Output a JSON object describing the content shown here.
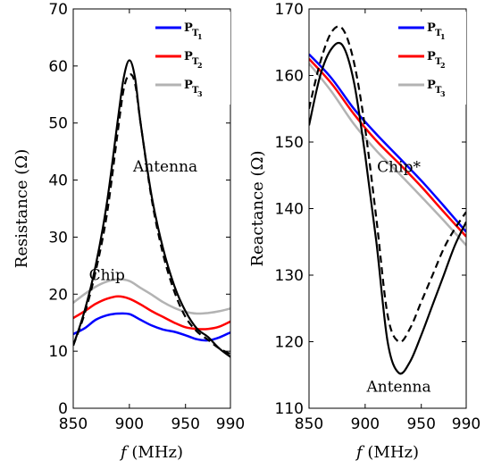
{
  "chart_data": [
    {
      "type": "line",
      "xlabel_var": "f",
      "xlabel_unit": "(MHz)",
      "ylabel": "Resistance (Ω)",
      "xlim": [
        850,
        990
      ],
      "ylim": [
        0,
        70
      ],
      "xticks": [
        850,
        900,
        950,
        990
      ],
      "yticks": [
        0,
        10,
        20,
        30,
        40,
        50,
        60,
        70
      ],
      "annotations": [
        {
          "text": "Antenna",
          "x": 932,
          "y": 41.5
        },
        {
          "text": "Chip",
          "x": 880,
          "y": 22.5
        }
      ],
      "legend": {
        "placement": "top-right",
        "entries": [
          {
            "base": "P",
            "sub": "T",
            "subsub": "1",
            "color": "#0000ff"
          },
          {
            "base": "P",
            "sub": "T",
            "subsub": "2",
            "color": "#ff0000"
          },
          {
            "base": "P",
            "sub": "T",
            "subsub": "3",
            "color": "#b3b3b3"
          }
        ]
      },
      "series": [
        {
          "color": "#0000ff",
          "width": 2.5,
          "dash": "",
          "x": [
            850,
            860,
            870,
            880,
            890,
            900,
            910,
            920,
            930,
            940,
            950,
            960,
            970,
            980,
            990
          ],
          "y": [
            13,
            14,
            15.5,
            16.3,
            16.6,
            16.5,
            15.5,
            14.5,
            13.8,
            13.4,
            12.8,
            12.1,
            11.9,
            12.4,
            13.3
          ]
        },
        {
          "color": "#ff0000",
          "width": 2.5,
          "dash": "",
          "x": [
            850,
            860,
            870,
            880,
            890,
            900,
            910,
            920,
            930,
            940,
            950,
            960,
            970,
            980,
            990
          ],
          "y": [
            15.8,
            17,
            18.3,
            19.2,
            19.6,
            19.2,
            18.2,
            17,
            16,
            15,
            14.2,
            13.9,
            13.9,
            14.3,
            15.2
          ]
        },
        {
          "color": "#b3b3b3",
          "width": 2.5,
          "dash": "",
          "x": [
            850,
            860,
            870,
            880,
            890,
            900,
            910,
            920,
            930,
            940,
            950,
            960,
            970,
            980,
            990
          ],
          "y": [
            18.5,
            20,
            21.3,
            22.2,
            22.6,
            22.3,
            21.1,
            19.9,
            18.6,
            17.6,
            16.9,
            16.6,
            16.7,
            17,
            17.5
          ]
        },
        {
          "color": "#000000",
          "width": 2.2,
          "dash": "",
          "x": [
            850,
            860,
            870,
            880,
            890,
            895,
            900,
            905,
            910,
            920,
            930,
            940,
            950,
            960,
            970,
            980,
            990
          ],
          "y": [
            11,
            17,
            25,
            36,
            51,
            58,
            61,
            58,
            50,
            37,
            28,
            21.5,
            17,
            14,
            12.5,
            10.5,
            9
          ]
        },
        {
          "color": "#000000",
          "width": 2.2,
          "dash": "8,5",
          "x": [
            850,
            860,
            870,
            880,
            890,
            895,
            900,
            905,
            910,
            920,
            930,
            940,
            950,
            960,
            970,
            980,
            990
          ],
          "y": [
            11,
            16.5,
            24,
            34,
            49,
            56,
            58.5,
            57,
            50,
            36.5,
            27,
            20.5,
            16,
            13.5,
            12,
            10.5,
            9.5
          ]
        }
      ]
    },
    {
      "type": "line",
      "xlabel_var": "f",
      "xlabel_unit": "(MHz)",
      "ylabel": "Reactance (Ω)",
      "xlim": [
        850,
        990
      ],
      "ylim": [
        110,
        170
      ],
      "xticks": [
        850,
        900,
        950,
        990
      ],
      "yticks": [
        110,
        120,
        130,
        140,
        150,
        160,
        170
      ],
      "annotations": [
        {
          "text": "Chip*",
          "x": 930,
          "y": 145.5
        },
        {
          "text": "Antenna",
          "x": 930,
          "y": 112.5
        }
      ],
      "legend": {
        "placement": "top-right",
        "entries": [
          {
            "base": "P",
            "sub": "T",
            "subsub": "1",
            "color": "#0000ff"
          },
          {
            "base": "P",
            "sub": "T",
            "subsub": "2",
            "color": "#ff0000"
          },
          {
            "base": "P",
            "sub": "T",
            "subsub": "3",
            "color": "#b3b3b3"
          }
        ]
      },
      "series": [
        {
          "color": "#0000ff",
          "width": 2.5,
          "dash": "",
          "x": [
            850,
            870,
            890,
            910,
            930,
            950,
            970,
            990
          ],
          "y": [
            163.2,
            159.6,
            155,
            151.2,
            147.7,
            144.2,
            140.4,
            136.5
          ]
        },
        {
          "color": "#ff0000",
          "width": 2.5,
          "dash": "",
          "x": [
            850,
            870,
            890,
            910,
            930,
            950,
            970,
            990
          ],
          "y": [
            162.5,
            158.8,
            154.2,
            150.2,
            146.8,
            143.3,
            139.5,
            135.8
          ]
        },
        {
          "color": "#b3b3b3",
          "width": 2.5,
          "dash": "",
          "x": [
            850,
            870,
            890,
            910,
            930,
            950,
            970,
            990
          ],
          "y": [
            161.8,
            157.6,
            152.7,
            148.7,
            145.3,
            141.8,
            138.2,
            134.5
          ]
        },
        {
          "color": "#000000",
          "width": 2.2,
          "dash": "",
          "x": [
            850,
            860,
            870,
            880,
            890,
            900,
            910,
            920,
            930,
            940,
            950,
            960,
            970,
            980,
            990
          ],
          "y": [
            152.5,
            160,
            164,
            164.5,
            159,
            148,
            135,
            120,
            115.3,
            117,
            121,
            125.5,
            130,
            134.5,
            138
          ]
        },
        {
          "color": "#000000",
          "width": 2.2,
          "dash": "8,5",
          "x": [
            850,
            860,
            870,
            880,
            890,
            900,
            910,
            920,
            930,
            940,
            950,
            960,
            970,
            980,
            990
          ],
          "y": [
            155,
            162,
            166.5,
            167,
            162,
            152,
            138.5,
            124,
            120,
            122,
            126,
            130,
            134,
            137,
            139.5
          ]
        }
      ]
    }
  ]
}
